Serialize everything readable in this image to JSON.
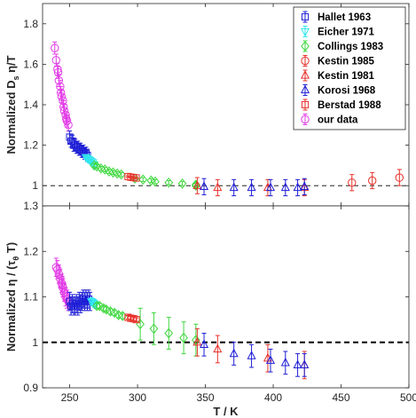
{
  "colors": {
    "Hallet 1963": "#1f1fd6",
    "Eicher 1971": "#33e6f0",
    "Collings 1983": "#3fd83f",
    "Kestin 1985": "#e8312a",
    "Kestin 1981": "#e8312a",
    "Korosi 1968": "#1f1fd6",
    "Berstad 1988": "#e8312a",
    "our data": "#e23ce6"
  },
  "chart_data": [
    {
      "type": "scatter",
      "panel": "top",
      "xlabel": "",
      "ylabel": "Normalized D_s η/T",
      "xlim": [
        230,
        500
      ],
      "ylim": [
        0.9,
        1.9
      ],
      "x_ticks": [],
      "y_ticks": [
        "1",
        "1.2",
        "1.4",
        "1.6",
        "1.8"
      ],
      "reference_line": {
        "y": 1,
        "style": "dashed-thin"
      },
      "legend": {
        "placement": "top-right",
        "entries": [
          "Hallet 1963",
          "Eicher 1971",
          "Collings 1983",
          "Kestin 1985",
          "Kestin 1981",
          "Korosi 1968",
          "Berstad 1988",
          "our data"
        ],
        "markers": [
          "square",
          "triangle-down",
          "diamond",
          "circle",
          "triangle-up",
          "triangle-up",
          "square",
          "circle"
        ]
      },
      "series": [
        {
          "name": "our data",
          "marker": "circle",
          "err": 0.03,
          "x": [
            239,
            240,
            241,
            241.5,
            242,
            243,
            243.5,
            244,
            245,
            245.5,
            246,
            247,
            247.5,
            248,
            249
          ],
          "y": [
            1.68,
            1.62,
            1.575,
            1.56,
            1.52,
            1.49,
            1.46,
            1.44,
            1.42,
            1.39,
            1.37,
            1.35,
            1.33,
            1.32,
            1.3
          ]
        },
        {
          "name": "Hallet 1963",
          "marker": "square",
          "err": 0.03,
          "x": [
            250,
            251,
            252,
            253,
            254,
            255,
            256,
            257,
            258,
            259,
            260,
            261,
            262,
            263
          ],
          "y": [
            1.24,
            1.22,
            1.22,
            1.2,
            1.2,
            1.19,
            1.19,
            1.18,
            1.18,
            1.17,
            1.17,
            1.16,
            1.16,
            1.15
          ]
        },
        {
          "name": "Eicher 1971",
          "marker": "triangle-down",
          "err": 0.01,
          "x": [
            262,
            263,
            264,
            265,
            266,
            267,
            268
          ],
          "y": [
            1.14,
            1.135,
            1.13,
            1.125,
            1.12,
            1.115,
            1.105
          ]
        },
        {
          "name": "Collings 1983",
          "marker": "diamond",
          "err": 0.01,
          "x": [
            268,
            270,
            273,
            276,
            279,
            282,
            285,
            288,
            298,
            304,
            310,
            313,
            323,
            333,
            343,
            343
          ],
          "y": [
            1.1,
            1.095,
            1.085,
            1.08,
            1.07,
            1.065,
            1.06,
            1.055,
            1.035,
            1.03,
            1.025,
            1.02,
            1.015,
            1.01,
            1.005,
            1.0
          ]
        },
        {
          "name": "Kestin 1985",
          "marker": "circle",
          "err": 0.04,
          "x": [
            458,
            473,
            493
          ],
          "y": [
            1.015,
            1.025,
            1.04
          ]
        },
        {
          "name": "Kestin 1981",
          "marker": "triangle-up",
          "err": 0.04,
          "x": [
            344,
            359,
            396,
            423
          ],
          "y": [
            1.0,
            0.99,
            0.99,
            0.99
          ]
        },
        {
          "name": "Korosi 1968",
          "marker": "triangle-up",
          "err": 0.04,
          "x": [
            349,
            371,
            384,
            398,
            409,
            418,
            423
          ],
          "y": [
            0.995,
            0.99,
            0.99,
            0.99,
            0.99,
            0.99,
            0.995
          ]
        },
        {
          "name": "Berstad 1988",
          "marker": "square",
          "err": 0.004,
          "x": [
            293,
            295,
            297,
            299
          ],
          "y": [
            1.045,
            1.042,
            1.04,
            1.038
          ]
        }
      ]
    },
    {
      "type": "scatter",
      "panel": "bottom",
      "xlabel": "T / K",
      "ylabel": "Normalized η / (τ_θ T)",
      "xlim": [
        230,
        500
      ],
      "ylim": [
        0.9,
        1.3
      ],
      "x_ticks": [
        "250",
        "300",
        "350",
        "400",
        "450",
        "500"
      ],
      "y_ticks": [
        "0.9",
        "1",
        "1.1",
        "1.2",
        "1.3"
      ],
      "reference_line": {
        "y": 1,
        "style": "dashed-thick"
      },
      "series": [
        {
          "name": "our data",
          "marker": "circle",
          "err": 0.02,
          "x": [
            240,
            241,
            242,
            243,
            244,
            244.5,
            245,
            246,
            247,
            248,
            249
          ],
          "y": [
            1.165,
            1.16,
            1.15,
            1.14,
            1.13,
            1.125,
            1.12,
            1.11,
            1.1,
            1.095,
            1.09
          ]
        },
        {
          "name": "Hallet 1963",
          "marker": "square",
          "err": 0.02,
          "x": [
            250,
            251,
            252,
            253,
            254,
            255,
            256,
            257,
            258,
            259,
            260,
            261,
            262,
            263,
            264,
            265
          ],
          "y": [
            1.09,
            1.08,
            1.085,
            1.08,
            1.08,
            1.085,
            1.08,
            1.09,
            1.085,
            1.09,
            1.095,
            1.09,
            1.095,
            1.09,
            1.095,
            1.09
          ]
        },
        {
          "name": "Eicher 1971",
          "marker": "triangle-down",
          "err": 0.008,
          "x": [
            266,
            267,
            268,
            269
          ],
          "y": [
            1.09,
            1.088,
            1.085,
            1.083
          ]
        },
        {
          "name": "Collings 1983",
          "marker": "diamond",
          "err": 0.006,
          "x": [
            270,
            272,
            275,
            277,
            280,
            283,
            286,
            289
          ],
          "y": [
            1.08,
            1.08,
            1.075,
            1.072,
            1.068,
            1.065,
            1.06,
            1.058
          ]
        },
        {
          "name": "Collings 1983",
          "marker": "diamond",
          "err": 0.035,
          "x": [
            302,
            312,
            323,
            334,
            343
          ],
          "y": [
            1.04,
            1.03,
            1.02,
            1.01,
            1.005
          ]
        },
        {
          "name": "Berstad 1988",
          "marker": "square",
          "err": 0.004,
          "x": [
            293,
            295,
            297,
            299
          ],
          "y": [
            1.055,
            1.053,
            1.052,
            1.05
          ]
        },
        {
          "name": "Kestin 1981",
          "marker": "triangle-up",
          "err": 0.03,
          "x": [
            344,
            359,
            396,
            423
          ],
          "y": [
            1.0,
            0.985,
            0.965,
            0.95
          ]
        },
        {
          "name": "Korosi 1968",
          "marker": "triangle-up",
          "err": 0.025,
          "x": [
            349,
            371,
            384,
            398,
            409,
            418,
            423
          ],
          "y": [
            0.995,
            0.975,
            0.97,
            0.96,
            0.955,
            0.95,
            0.95
          ]
        }
      ]
    }
  ]
}
